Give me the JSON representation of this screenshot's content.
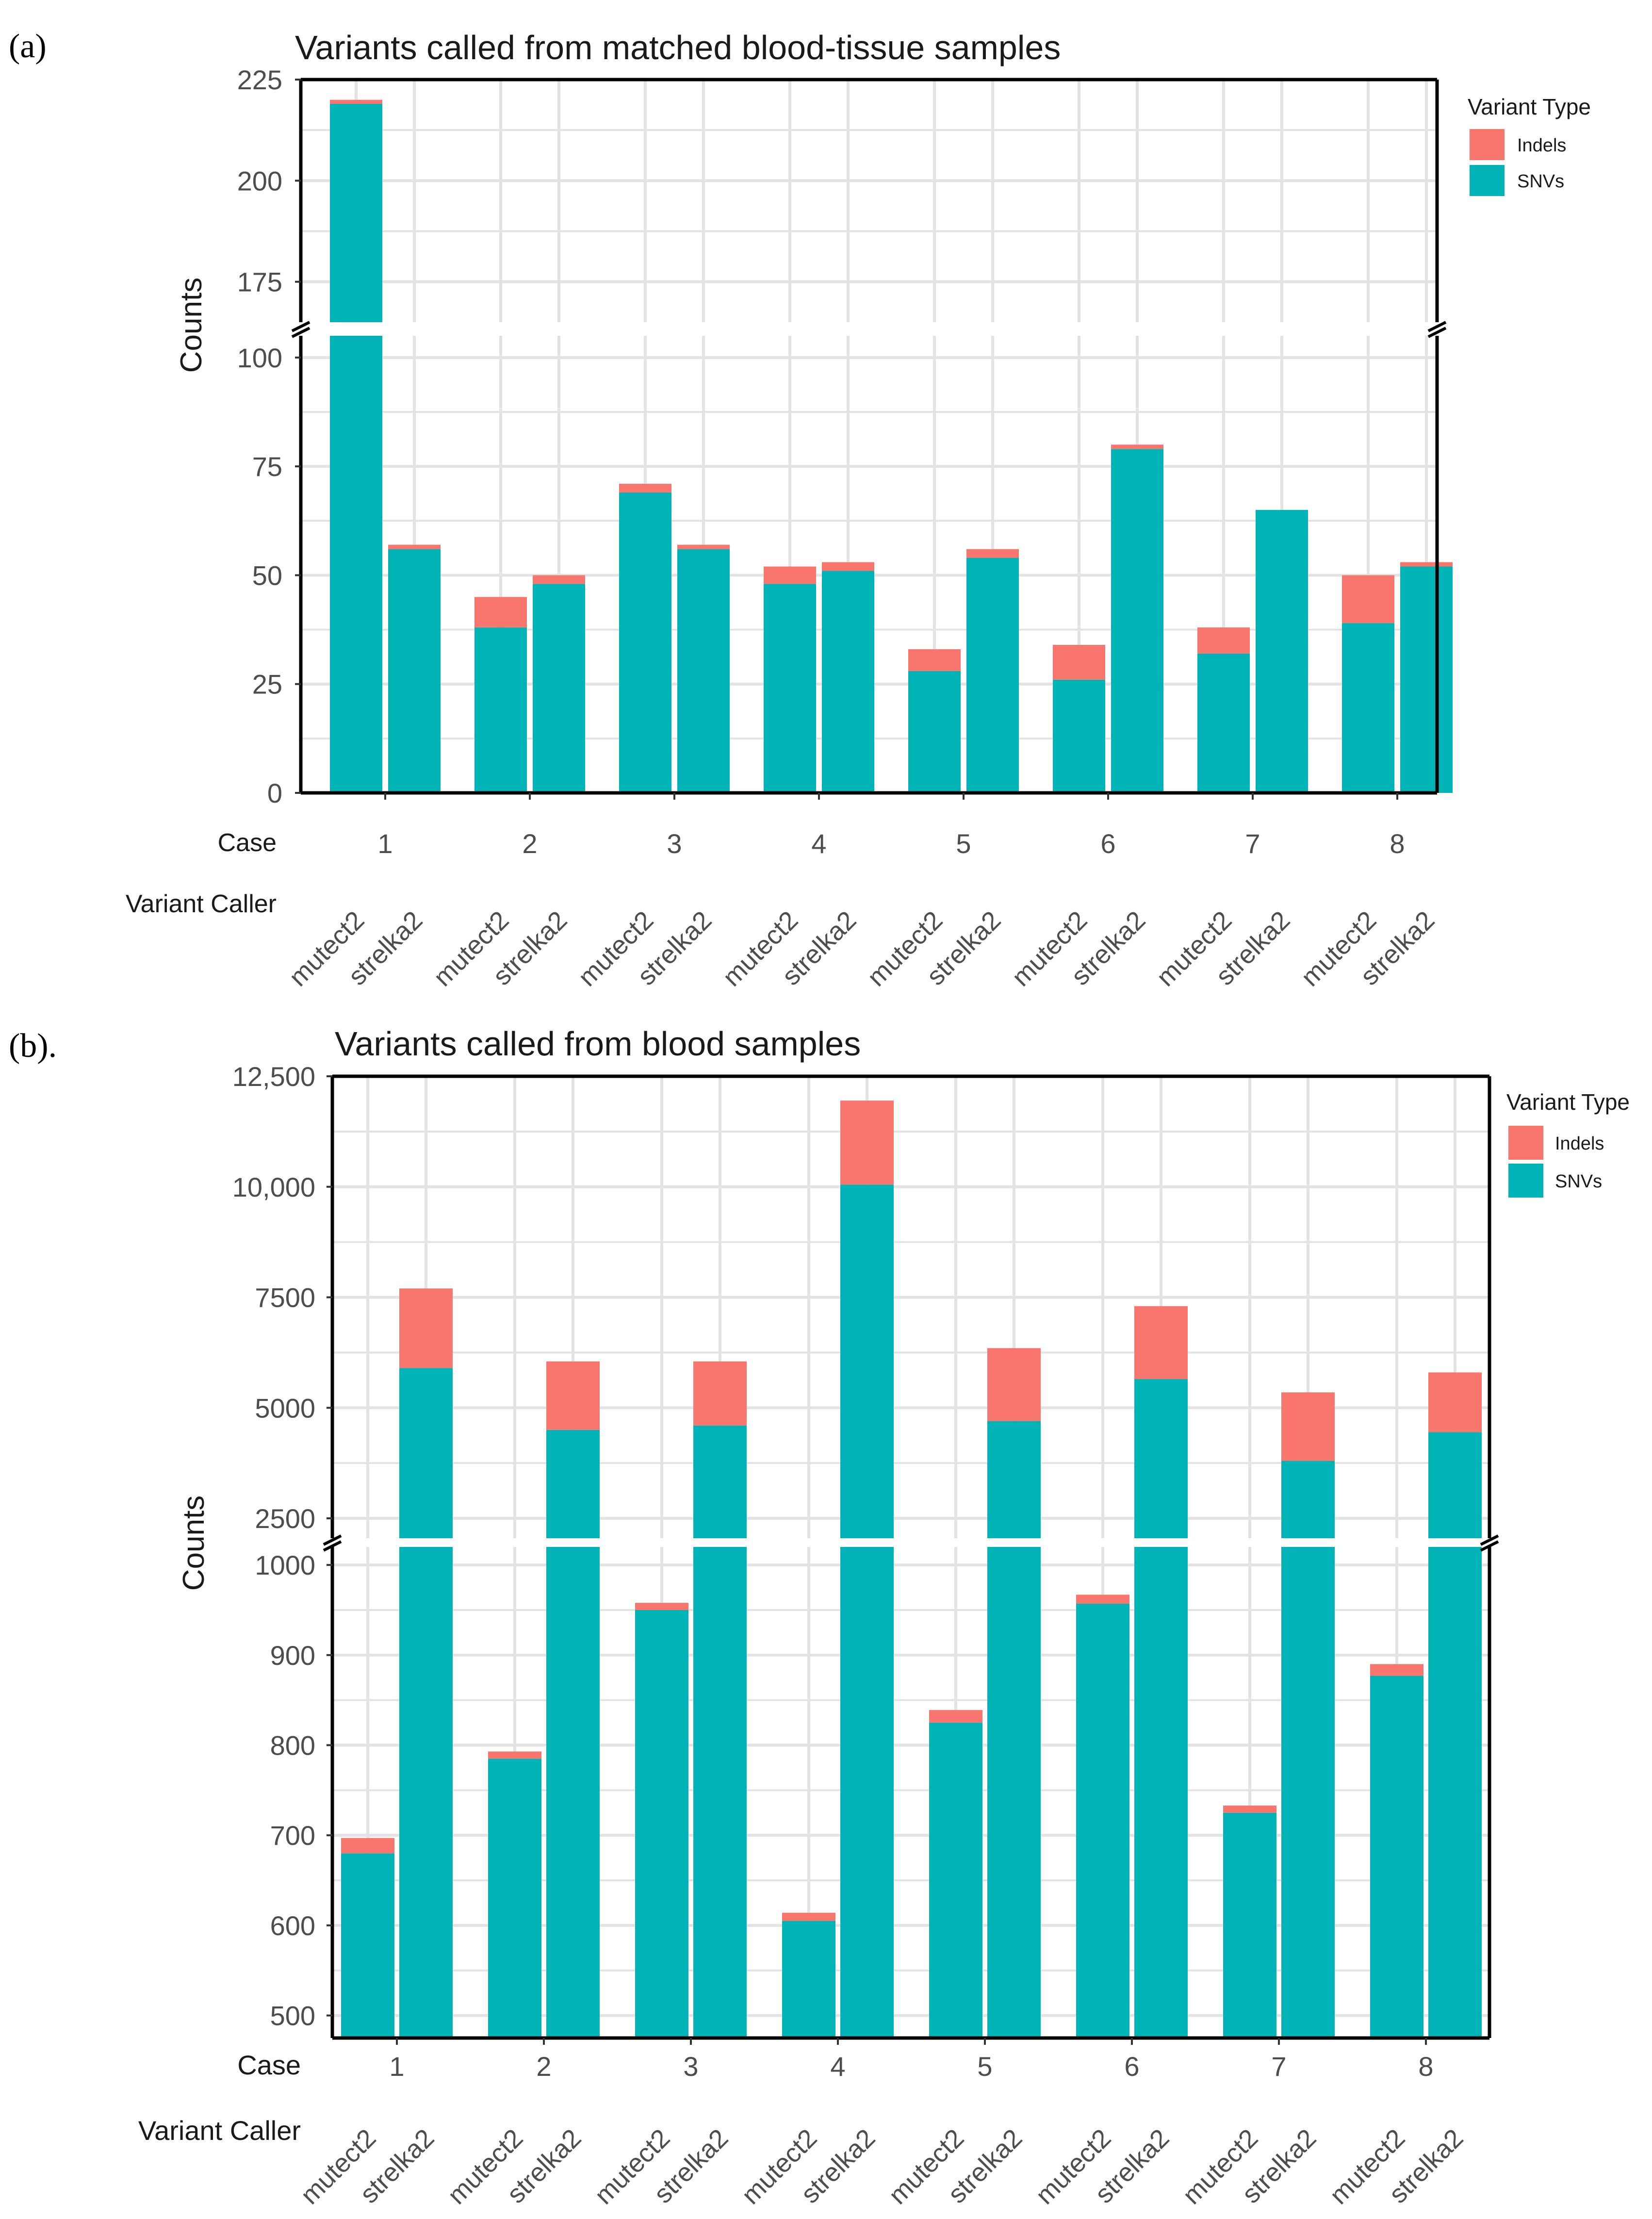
{
  "colors": {
    "indels": "#F8766D",
    "snvs": "#00B3B6",
    "grid": "#E3E3E3",
    "panel_border": "#000000"
  },
  "chart_data": [
    {
      "panel_label": "(a)",
      "type": "bar",
      "stacked": true,
      "title": "Variants called from matched blood-tissue samples",
      "ylabel": "Counts",
      "case_label": "Case",
      "caller_label": "Variant Caller",
      "cases": [
        "1",
        "2",
        "3",
        "4",
        "5",
        "6",
        "7",
        "8"
      ],
      "callers": [
        "mutect2",
        "strelka2"
      ],
      "legend": {
        "title": "Variant Type",
        "entries": [
          "Indels",
          "SNVs"
        ],
        "placement": "right"
      },
      "axis_segments": [
        {
          "range": [
            0,
            105
          ],
          "ticks": [
            0,
            25,
            50,
            75,
            100
          ],
          "tick_labels": [
            "0",
            "25",
            "50",
            "75",
            "100"
          ]
        },
        {
          "range": [
            165,
            225
          ],
          "ticks": [
            175,
            200,
            225
          ],
          "tick_labels": [
            "175",
            "200",
            "225"
          ]
        }
      ],
      "series": [
        {
          "name": "SNVs",
          "values": [
            219,
            56,
            38,
            48,
            69,
            56,
            48,
            51,
            28,
            54,
            26,
            79,
            32,
            65,
            39,
            52
          ]
        },
        {
          "name": "Indels",
          "values": [
            1,
            1,
            7,
            2,
            2,
            1,
            4,
            2,
            5,
            2,
            8,
            1,
            6,
            0,
            11,
            1
          ]
        }
      ]
    },
    {
      "panel_label": "(b).",
      "type": "bar",
      "stacked": true,
      "title": "Variants called from blood samples",
      "ylabel": "Counts",
      "case_label": "Case",
      "caller_label": "Variant Caller",
      "cases": [
        "1",
        "2",
        "3",
        "4",
        "5",
        "6",
        "7",
        "8"
      ],
      "callers": [
        "mutect2",
        "strelka2"
      ],
      "legend": {
        "title": "Variant Type",
        "entries": [
          "Indels",
          "SNVs"
        ],
        "placement": "right"
      },
      "axis_segments": [
        {
          "range": [
            475,
            1020
          ],
          "ticks": [
            500,
            600,
            700,
            800,
            900,
            1000
          ],
          "tick_labels": [
            "500",
            "600",
            "700",
            "800",
            "900",
            "1000"
          ]
        },
        {
          "range": [
            2050,
            12500
          ],
          "ticks": [
            2500,
            5000,
            7500,
            10000,
            12500
          ],
          "tick_labels": [
            "2500",
            "5000",
            "7500",
            "10,000",
            "12,500"
          ]
        }
      ],
      "series": [
        {
          "name": "SNVs",
          "values": [
            680,
            5900,
            785,
            4500,
            950,
            4600,
            605,
            10050,
            825,
            4700,
            957,
            5650,
            725,
            3800,
            877,
            4450
          ]
        },
        {
          "name": "Indels",
          "values": [
            17,
            1800,
            8,
            1550,
            8,
            1450,
            9,
            1900,
            14,
            1650,
            10,
            1650,
            8,
            1550,
            13,
            1350
          ]
        }
      ]
    }
  ]
}
